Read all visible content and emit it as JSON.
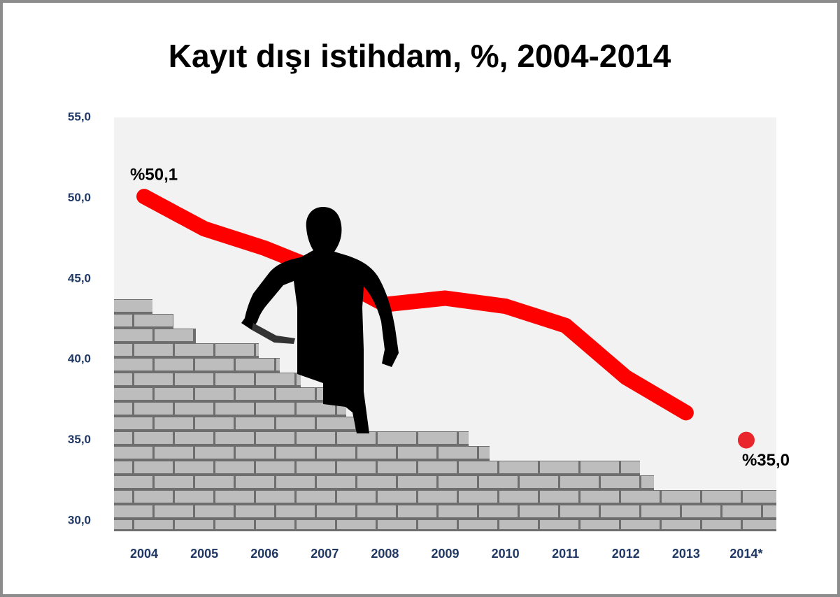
{
  "chart_data": {
    "type": "line",
    "title": "Kayıt dışı istihdam, %, 2004-2014",
    "categories": [
      "2004",
      "2005",
      "2006",
      "2007",
      "2008",
      "2009",
      "2010",
      "2011",
      "2012",
      "2013",
      "2014*"
    ],
    "series": [
      {
        "color": "#ff0000",
        "values": [
          50.1,
          48.1,
          46.9,
          45.4,
          43.4,
          43.8,
          43.3,
          42.1,
          38.9,
          36.7,
          null
        ],
        "value_labels": [
          "%50,1",
          null,
          null,
          null,
          null,
          null,
          null,
          null,
          null,
          null,
          null
        ]
      },
      {
        "color": "#e8262c",
        "values": [
          null,
          null,
          null,
          null,
          null,
          null,
          null,
          null,
          null,
          null,
          35.0
        ],
        "value_labels": [
          null,
          null,
          null,
          null,
          null,
          null,
          null,
          null,
          null,
          null,
          "%35,0"
        ]
      }
    ],
    "ylim": [
      30,
      55
    ],
    "yticks": [
      {
        "value": 30,
        "label": "30,0"
      },
      {
        "value": 35,
        "label": "35,0"
      },
      {
        "value": 40,
        "label": "40,0"
      },
      {
        "value": 45,
        "label": "45,0"
      },
      {
        "value": 50,
        "label": "50,0"
      },
      {
        "value": 55,
        "label": "55,0"
      }
    ]
  }
}
